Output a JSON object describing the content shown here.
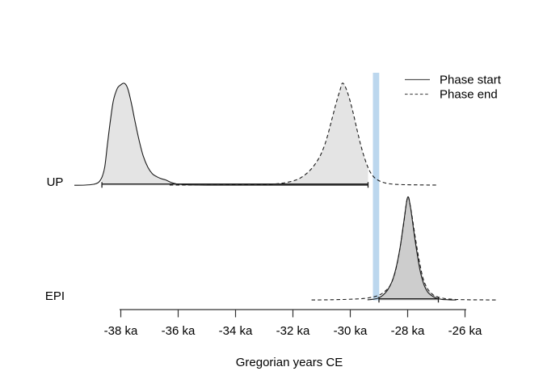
{
  "figure": {
    "background": "#ffffff"
  },
  "chart_data": {
    "type": "area",
    "title": "",
    "xlabel": "Gregorian years CE",
    "x_axis": {
      "unit": "ka",
      "ticks": [
        -38,
        -36,
        -34,
        -32,
        -30,
        -28,
        -26
      ],
      "tick_labels": [
        "-38 ka",
        "-36 ka",
        "-34 ka",
        "-32 ka",
        "-30 ka",
        "-28 ka",
        "-26 ka"
      ],
      "xlim": [
        -39.7,
        -24.8
      ],
      "grid": false
    },
    "legend": {
      "position": "top-right",
      "entries": [
        {
          "label": "Phase start",
          "line_style": "solid"
        },
        {
          "label": "Phase end",
          "line_style": "dashed"
        }
      ]
    },
    "highlight_band": {
      "ka_from": -29.21,
      "ka_to": -28.99,
      "color": "#bcd7ee"
    },
    "colors": {
      "curve": "#1b1b1b",
      "axis": "#333333",
      "text": "#000000",
      "legend_sample": "#555555"
    },
    "rows": [
      {
        "label": "UP",
        "fill_color": "#e4e4e4",
        "phase_range_ka": [
          -38.66,
          -29.38
        ],
        "start_density": {
          "peak_ka": -37.9,
          "points": [
            [
              -39.62,
              0.002
            ],
            [
              -39.25,
              0.004
            ],
            [
              -38.95,
              0.012
            ],
            [
              -38.78,
              0.03
            ],
            [
              -38.66,
              0.08
            ],
            [
              -38.56,
              0.18
            ],
            [
              -38.46,
              0.42
            ],
            [
              -38.36,
              0.64
            ],
            [
              -38.26,
              0.83
            ],
            [
              -38.12,
              0.95
            ],
            [
              -38.0,
              0.985
            ],
            [
              -37.88,
              1.0
            ],
            [
              -37.76,
              0.95
            ],
            [
              -37.62,
              0.79
            ],
            [
              -37.5,
              0.62
            ],
            [
              -37.36,
              0.44
            ],
            [
              -37.22,
              0.29
            ],
            [
              -37.06,
              0.18
            ],
            [
              -36.9,
              0.115
            ],
            [
              -36.74,
              0.085
            ],
            [
              -36.58,
              0.066
            ],
            [
              -36.44,
              0.055
            ],
            [
              -36.26,
              0.032
            ],
            [
              -36.06,
              0.016
            ],
            [
              -35.8,
              0.008
            ],
            [
              -35.3,
              0.004
            ],
            [
              -34.4,
              0.003
            ],
            [
              -33.2,
              0.003
            ],
            [
              -32.0,
              0.003
            ],
            [
              -30.8,
              0.003
            ],
            [
              -29.9,
              0.003
            ],
            [
              -29.38,
              0.003
            ]
          ]
        },
        "end_density": {
          "peak_ka": -30.3,
          "points": [
            [
              -36.3,
              0.004
            ],
            [
              -35.2,
              0.005
            ],
            [
              -34.2,
              0.007
            ],
            [
              -33.4,
              0.009
            ],
            [
              -32.8,
              0.013
            ],
            [
              -32.4,
              0.022
            ],
            [
              -32.05,
              0.04
            ],
            [
              -31.8,
              0.065
            ],
            [
              -31.6,
              0.1
            ],
            [
              -31.4,
              0.15
            ],
            [
              -31.2,
              0.22
            ],
            [
              -31.0,
              0.32
            ],
            [
              -30.82,
              0.46
            ],
            [
              -30.64,
              0.65
            ],
            [
              -30.48,
              0.82
            ],
            [
              -30.36,
              0.93
            ],
            [
              -30.28,
              1.0
            ],
            [
              -30.18,
              0.97
            ],
            [
              -30.04,
              0.86
            ],
            [
              -29.9,
              0.71
            ],
            [
              -29.76,
              0.54
            ],
            [
              -29.62,
              0.38
            ],
            [
              -29.48,
              0.25
            ],
            [
              -29.34,
              0.15
            ],
            [
              -29.2,
              0.09
            ],
            [
              -29.05,
              0.055
            ],
            [
              -28.9,
              0.035
            ],
            [
              -28.7,
              0.02
            ],
            [
              -28.45,
              0.012
            ],
            [
              -28.1,
              0.008
            ],
            [
              -27.7,
              0.006
            ],
            [
              -27.3,
              0.005
            ],
            [
              -27.0,
              0.005
            ]
          ]
        },
        "fill_envelope": [
          [
            -38.66,
            0.06
          ],
          [
            -38.56,
            0.18
          ],
          [
            -38.46,
            0.42
          ],
          [
            -38.36,
            0.64
          ],
          [
            -38.26,
            0.83
          ],
          [
            -38.12,
            0.95
          ],
          [
            -38.0,
            0.985
          ],
          [
            -37.88,
            1.0
          ],
          [
            -37.76,
            0.95
          ],
          [
            -37.62,
            0.79
          ],
          [
            -37.5,
            0.62
          ],
          [
            -37.36,
            0.44
          ],
          [
            -37.22,
            0.29
          ],
          [
            -37.06,
            0.18
          ],
          [
            -36.9,
            0.115
          ],
          [
            -36.74,
            0.085
          ],
          [
            -36.58,
            0.066
          ],
          [
            -36.44,
            0.055
          ],
          [
            -36.26,
            0.032
          ],
          [
            -36.06,
            0.016
          ],
          [
            -35.8,
            0.008
          ],
          [
            -35.0,
            0.005
          ],
          [
            -34.0,
            0.006
          ],
          [
            -33.2,
            0.009
          ],
          [
            -32.8,
            0.013
          ],
          [
            -32.4,
            0.022
          ],
          [
            -32.05,
            0.04
          ],
          [
            -31.8,
            0.065
          ],
          [
            -31.6,
            0.1
          ],
          [
            -31.4,
            0.15
          ],
          [
            -31.2,
            0.22
          ],
          [
            -31.0,
            0.32
          ],
          [
            -30.82,
            0.46
          ],
          [
            -30.64,
            0.65
          ],
          [
            -30.48,
            0.82
          ],
          [
            -30.36,
            0.93
          ],
          [
            -30.28,
            1.0
          ],
          [
            -30.18,
            0.97
          ],
          [
            -30.04,
            0.86
          ],
          [
            -29.9,
            0.71
          ],
          [
            -29.76,
            0.54
          ],
          [
            -29.62,
            0.38
          ],
          [
            -29.48,
            0.25
          ],
          [
            -29.38,
            0.16
          ]
        ]
      },
      {
        "label": "EPI",
        "fill_color": "#cdcdcd",
        "phase_range_ka": [
          -29.0,
          -26.93
        ],
        "start_density": {
          "peak_ka": -28.0,
          "points": [
            [
              -29.4,
              0.005
            ],
            [
              -29.2,
              0.01
            ],
            [
              -29.02,
              0.022
            ],
            [
              -28.86,
              0.05
            ],
            [
              -28.7,
              0.1
            ],
            [
              -28.55,
              0.18
            ],
            [
              -28.4,
              0.32
            ],
            [
              -28.26,
              0.52
            ],
            [
              -28.13,
              0.77
            ],
            [
              -28.0,
              1.0
            ],
            [
              -27.9,
              0.9
            ],
            [
              -27.8,
              0.7
            ],
            [
              -27.68,
              0.47
            ],
            [
              -27.56,
              0.28
            ],
            [
              -27.43,
              0.15
            ],
            [
              -27.3,
              0.08
            ],
            [
              -27.15,
              0.042
            ],
            [
              -27.0,
              0.02
            ],
            [
              -26.8,
              0.009
            ],
            [
              -26.55,
              0.005
            ],
            [
              -26.3,
              0.003
            ]
          ]
        },
        "end_density": {
          "peak_ka": -28.0,
          "points": [
            [
              -31.35,
              0.003
            ],
            [
              -30.8,
              0.005
            ],
            [
              -30.25,
              0.008
            ],
            [
              -29.85,
              0.012
            ],
            [
              -29.5,
              0.018
            ],
            [
              -29.2,
              0.032
            ],
            [
              -28.98,
              0.052
            ],
            [
              -28.8,
              0.085
            ],
            [
              -28.62,
              0.14
            ],
            [
              -28.46,
              0.25
            ],
            [
              -28.3,
              0.45
            ],
            [
              -28.15,
              0.72
            ],
            [
              -28.0,
              1.0
            ],
            [
              -27.88,
              0.87
            ],
            [
              -27.74,
              0.62
            ],
            [
              -27.6,
              0.39
            ],
            [
              -27.46,
              0.21
            ],
            [
              -27.3,
              0.11
            ],
            [
              -27.12,
              0.055
            ],
            [
              -26.95,
              0.032
            ],
            [
              -26.74,
              0.018
            ],
            [
              -26.5,
              0.011
            ],
            [
              -26.2,
              0.007
            ],
            [
              -25.8,
              0.005
            ],
            [
              -25.3,
              0.004
            ],
            [
              -24.88,
              0.003
            ]
          ]
        },
        "fill_envelope": [
          [
            -29.0,
            0.03
          ],
          [
            -28.86,
            0.06
          ],
          [
            -28.7,
            0.105
          ],
          [
            -28.55,
            0.185
          ],
          [
            -28.4,
            0.33
          ],
          [
            -28.26,
            0.53
          ],
          [
            -28.13,
            0.78
          ],
          [
            -28.0,
            1.0
          ],
          [
            -27.88,
            0.87
          ],
          [
            -27.74,
            0.62
          ],
          [
            -27.6,
            0.39
          ],
          [
            -27.46,
            0.21
          ],
          [
            -27.3,
            0.11
          ],
          [
            -27.12,
            0.055
          ],
          [
            -26.93,
            0.028
          ]
        ]
      }
    ]
  }
}
